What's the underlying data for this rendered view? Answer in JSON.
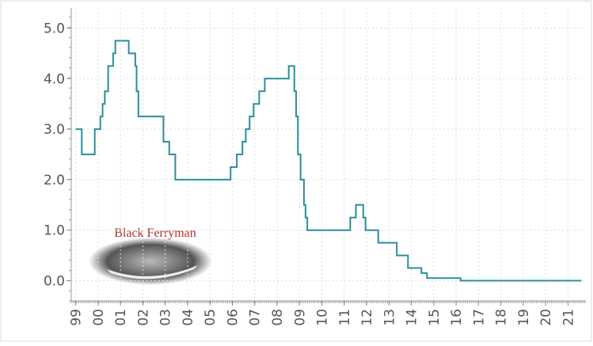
{
  "chart_data": {
    "type": "line",
    "step": true,
    "watermark": "Black Ferryman",
    "x": [
      1999.0,
      1999.27,
      1999.85,
      2000.1,
      2000.2,
      2000.3,
      2000.45,
      2000.67,
      2000.77,
      2001.37,
      2001.66,
      2001.72,
      2001.8,
      2002.92,
      2003.18,
      2003.45,
      2005.92,
      2006.2,
      2006.45,
      2006.6,
      2006.77,
      2006.95,
      2007.2,
      2007.45,
      2008.52,
      2008.77,
      2008.85,
      2008.93,
      2009.05,
      2009.2,
      2009.27,
      2009.35,
      2011.27,
      2011.52,
      2011.85,
      2011.95,
      2012.52,
      2013.35,
      2013.85,
      2014.45,
      2014.7,
      2016.2,
      2021.6
    ],
    "values": [
      3.0,
      2.5,
      3.0,
      3.25,
      3.5,
      3.75,
      4.25,
      4.5,
      4.75,
      4.5,
      4.25,
      3.75,
      3.25,
      2.75,
      2.5,
      2.0,
      2.25,
      2.5,
      2.75,
      3.0,
      3.25,
      3.5,
      3.75,
      4.0,
      4.25,
      3.75,
      3.25,
      2.5,
      2.0,
      1.5,
      1.25,
      1.0,
      1.25,
      1.5,
      1.25,
      1.0,
      0.75,
      0.5,
      0.25,
      0.15,
      0.05,
      0.0,
      0.0
    ],
    "color": "#2a8f9c",
    "xlim": [
      1998.8,
      2021.8
    ],
    "xticks": [
      {
        "value": 1999,
        "label": "99"
      },
      {
        "value": 2000,
        "label": "00"
      },
      {
        "value": 2001,
        "label": "01"
      },
      {
        "value": 2002,
        "label": "02"
      },
      {
        "value": 2003,
        "label": "03"
      },
      {
        "value": 2004,
        "label": "04"
      },
      {
        "value": 2005,
        "label": "05"
      },
      {
        "value": 2006,
        "label": "06"
      },
      {
        "value": 2007,
        "label": "07"
      },
      {
        "value": 2008,
        "label": "08"
      },
      {
        "value": 2009,
        "label": "09"
      },
      {
        "value": 2010,
        "label": "10"
      },
      {
        "value": 2011,
        "label": "11"
      },
      {
        "value": 2012,
        "label": "12"
      },
      {
        "value": 2013,
        "label": "13"
      },
      {
        "value": 2014,
        "label": "14"
      },
      {
        "value": 2015,
        "label": "15"
      },
      {
        "value": 2016,
        "label": "16"
      },
      {
        "value": 2017,
        "label": "17"
      },
      {
        "value": 2018,
        "label": "18"
      },
      {
        "value": 2019,
        "label": "19"
      },
      {
        "value": 2020,
        "label": "20"
      },
      {
        "value": 2021,
        "label": "21"
      }
    ],
    "ylim": [
      -0.4,
      5.4
    ],
    "yticks": [
      {
        "value": 0,
        "label": "0.0"
      },
      {
        "value": 1,
        "label": "1.0"
      },
      {
        "value": 2,
        "label": "2.0"
      },
      {
        "value": 3,
        "label": "3.0"
      },
      {
        "value": 4,
        "label": "4.0"
      },
      {
        "value": 5,
        "label": "5.0"
      }
    ],
    "grid": true
  }
}
